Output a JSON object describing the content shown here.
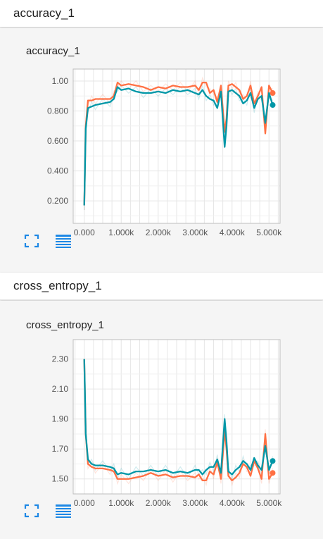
{
  "sections": [
    {
      "header": "accuracy_1",
      "chart_data": {
        "title": "accuracy_1",
        "type": "line",
        "xlim": [
          -300,
          5300
        ],
        "ylim": [
          0.05,
          1.08
        ],
        "yticks": [
          0.2,
          0.4,
          0.6,
          0.8,
          1.0
        ],
        "ytick_labels": [
          "0.200",
          "0.400",
          "0.600",
          "0.800",
          "1.00"
        ],
        "xticks": [
          0,
          1000,
          2000,
          3000,
          4000,
          5000
        ],
        "xtick_labels": [
          "0.000",
          "1.000k",
          "2.000k",
          "3.000k",
          "4.000k",
          "5.000k"
        ],
        "grid": true,
        "series": [
          {
            "color": "#ff7043",
            "x": [
              0,
              40,
              100,
              200,
              300,
              500,
              700,
              800,
              900,
              1000,
              1200,
              1400,
              1600,
              1800,
              2000,
              2200,
              2400,
              2600,
              2800,
              3000,
              3100,
              3200,
              3300,
              3400,
              3500,
              3600,
              3700,
              3800,
              3850,
              3900,
              4000,
              4100,
              4200,
              4300,
              4400,
              4500,
              4600,
              4700,
              4800,
              4900,
              5000,
              5100
            ],
            "y": [
              0.17,
              0.7,
              0.87,
              0.87,
              0.88,
              0.88,
              0.88,
              0.9,
              0.99,
              0.97,
              0.98,
              0.97,
              0.96,
              0.94,
              0.96,
              0.95,
              0.97,
              0.96,
              0.96,
              0.97,
              0.94,
              0.99,
              0.99,
              0.92,
              0.94,
              0.86,
              0.97,
              0.66,
              0.75,
              0.97,
              0.98,
              0.96,
              0.94,
              0.88,
              0.9,
              0.97,
              0.85,
              0.9,
              0.96,
              0.65,
              0.97,
              0.92
            ]
          },
          {
            "color": "#0097a7",
            "x": [
              0,
              40,
              100,
              200,
              300,
              500,
              700,
              800,
              900,
              1000,
              1200,
              1400,
              1600,
              1800,
              2000,
              2200,
              2400,
              2600,
              2800,
              3000,
              3100,
              3200,
              3300,
              3400,
              3500,
              3600,
              3700,
              3800,
              3850,
              3900,
              4000,
              4100,
              4200,
              4300,
              4400,
              4500,
              4600,
              4700,
              4800,
              4900,
              5000,
              5100
            ],
            "y": [
              0.17,
              0.68,
              0.82,
              0.83,
              0.84,
              0.85,
              0.86,
              0.88,
              0.96,
              0.94,
              0.95,
              0.93,
              0.92,
              0.92,
              0.93,
              0.92,
              0.94,
              0.93,
              0.94,
              0.92,
              0.91,
              0.94,
              0.9,
              0.88,
              0.87,
              0.82,
              0.93,
              0.56,
              0.7,
              0.93,
              0.94,
              0.92,
              0.9,
              0.85,
              0.87,
              0.92,
              0.82,
              0.88,
              0.9,
              0.72,
              0.92,
              0.84
            ]
          }
        ]
      }
    },
    {
      "header": "cross_entropy_1",
      "chart_data": {
        "title": "cross_entropy_1",
        "type": "line",
        "xlim": [
          -300,
          5300
        ],
        "ylim": [
          1.4,
          2.43
        ],
        "yticks": [
          1.5,
          1.7,
          1.9,
          2.1,
          2.3
        ],
        "ytick_labels": [
          "1.50",
          "1.70",
          "1.90",
          "2.10",
          "2.30"
        ],
        "xticks": [
          0,
          1000,
          2000,
          3000,
          4000,
          5000
        ],
        "xtick_labels": [
          "0.000",
          "1.000k",
          "2.000k",
          "3.000k",
          "4.000k",
          "5.000k"
        ],
        "grid": true,
        "series": [
          {
            "color": "#ff7043",
            "x": [
              0,
              40,
              100,
              200,
              300,
              500,
              700,
              800,
              900,
              1000,
              1200,
              1400,
              1600,
              1800,
              2000,
              2200,
              2400,
              2600,
              2800,
              3000,
              3100,
              3200,
              3300,
              3400,
              3500,
              3600,
              3700,
              3800,
              3850,
              3900,
              4000,
              4100,
              4200,
              4300,
              4400,
              4500,
              4600,
              4700,
              4800,
              4900,
              5000,
              5100
            ],
            "y": [
              2.3,
              1.8,
              1.6,
              1.58,
              1.57,
              1.57,
              1.56,
              1.55,
              1.5,
              1.5,
              1.5,
              1.51,
              1.52,
              1.54,
              1.52,
              1.53,
              1.51,
              1.52,
              1.52,
              1.51,
              1.53,
              1.49,
              1.49,
              1.55,
              1.53,
              1.61,
              1.5,
              1.82,
              1.7,
              1.52,
              1.49,
              1.51,
              1.54,
              1.6,
              1.58,
              1.52,
              1.62,
              1.57,
              1.5,
              1.8,
              1.5,
              1.54
            ]
          },
          {
            "color": "#0097a7",
            "x": [
              0,
              40,
              100,
              200,
              300,
              500,
              700,
              800,
              900,
              1000,
              1200,
              1400,
              1600,
              1800,
              2000,
              2200,
              2400,
              2600,
              2800,
              3000,
              3100,
              3200,
              3300,
              3400,
              3500,
              3600,
              3700,
              3800,
              3850,
              3900,
              4000,
              4100,
              4200,
              4300,
              4400,
              4500,
              4600,
              4700,
              4800,
              4900,
              5000,
              5100
            ],
            "y": [
              2.3,
              1.8,
              1.63,
              1.6,
              1.59,
              1.59,
              1.58,
              1.57,
              1.53,
              1.54,
              1.53,
              1.55,
              1.55,
              1.56,
              1.55,
              1.56,
              1.54,
              1.55,
              1.54,
              1.56,
              1.56,
              1.53,
              1.56,
              1.58,
              1.58,
              1.63,
              1.54,
              1.9,
              1.75,
              1.55,
              1.53,
              1.56,
              1.58,
              1.62,
              1.6,
              1.56,
              1.64,
              1.59,
              1.56,
              1.72,
              1.56,
              1.62
            ]
          }
        ]
      }
    }
  ],
  "icons": [
    "fullscreen-icon",
    "data-table-icon"
  ],
  "accent_color": "#1e88e5"
}
